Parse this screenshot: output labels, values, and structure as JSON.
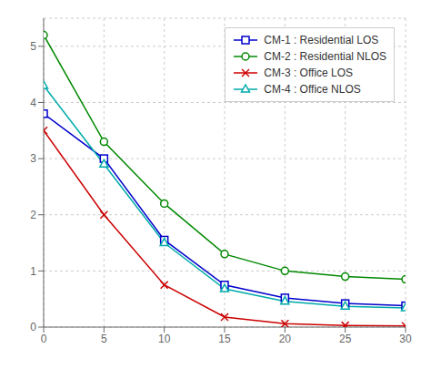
{
  "chart_data": {
    "type": "line",
    "x": [
      0,
      5,
      10,
      15,
      20,
      25,
      30
    ],
    "series": [
      {
        "name": "CM-1 : Residential LOS",
        "color": "#0000cc",
        "marker": "square",
        "values": [
          3.8,
          3.0,
          1.55,
          0.75,
          0.52,
          0.42,
          0.38
        ]
      },
      {
        "name": "CM-2 : Residential NLOS",
        "color": "#008800",
        "marker": "circle",
        "values": [
          5.2,
          3.3,
          2.2,
          1.3,
          1.0,
          0.9,
          0.85
        ]
      },
      {
        "name": "CM-3 : Office LOS",
        "color": "#cc0000",
        "marker": "x",
        "values": [
          3.5,
          2.0,
          0.75,
          0.18,
          0.06,
          0.03,
          0.02
        ]
      },
      {
        "name": "CM-4 : Office NLOS",
        "color": "#00aaaa",
        "marker": "triangle",
        "values": [
          4.3,
          2.9,
          1.5,
          0.68,
          0.46,
          0.37,
          0.34
        ]
      }
    ],
    "xlim": [
      0,
      30
    ],
    "ylim": [
      0,
      5.5
    ],
    "xticks": [
      0,
      5,
      10,
      15,
      20,
      25,
      30
    ],
    "yticks": [
      0,
      1,
      2,
      3,
      4,
      5
    ],
    "grid": true,
    "legend": "upper right"
  }
}
